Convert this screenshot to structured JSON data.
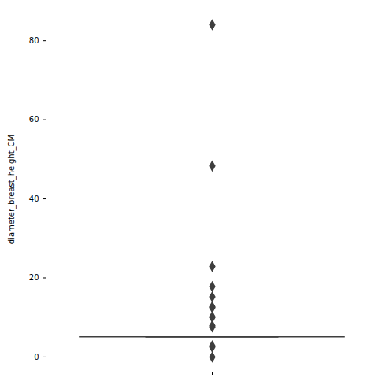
{
  "chart_data": {
    "type": "box",
    "ylabel": "diameter_breast_height_CM",
    "median": 5.1,
    "q1": 5.1,
    "q3": 5.1,
    "whisker_low": 5.1,
    "whisker_high": 5.1,
    "outliers": [
      0,
      2.5,
      2.8,
      7.6,
      7.9,
      10.0,
      10.2,
      12.5,
      12.7,
      15.2,
      17.8,
      22.9,
      48.3,
      84.0
    ],
    "ylim": [
      -3.8,
      88.6
    ],
    "yticks": [
      0,
      20,
      40,
      60,
      80
    ],
    "color": "#3f3f3f",
    "marker": "diamond",
    "tick_labels": "y",
    "grid": false
  }
}
